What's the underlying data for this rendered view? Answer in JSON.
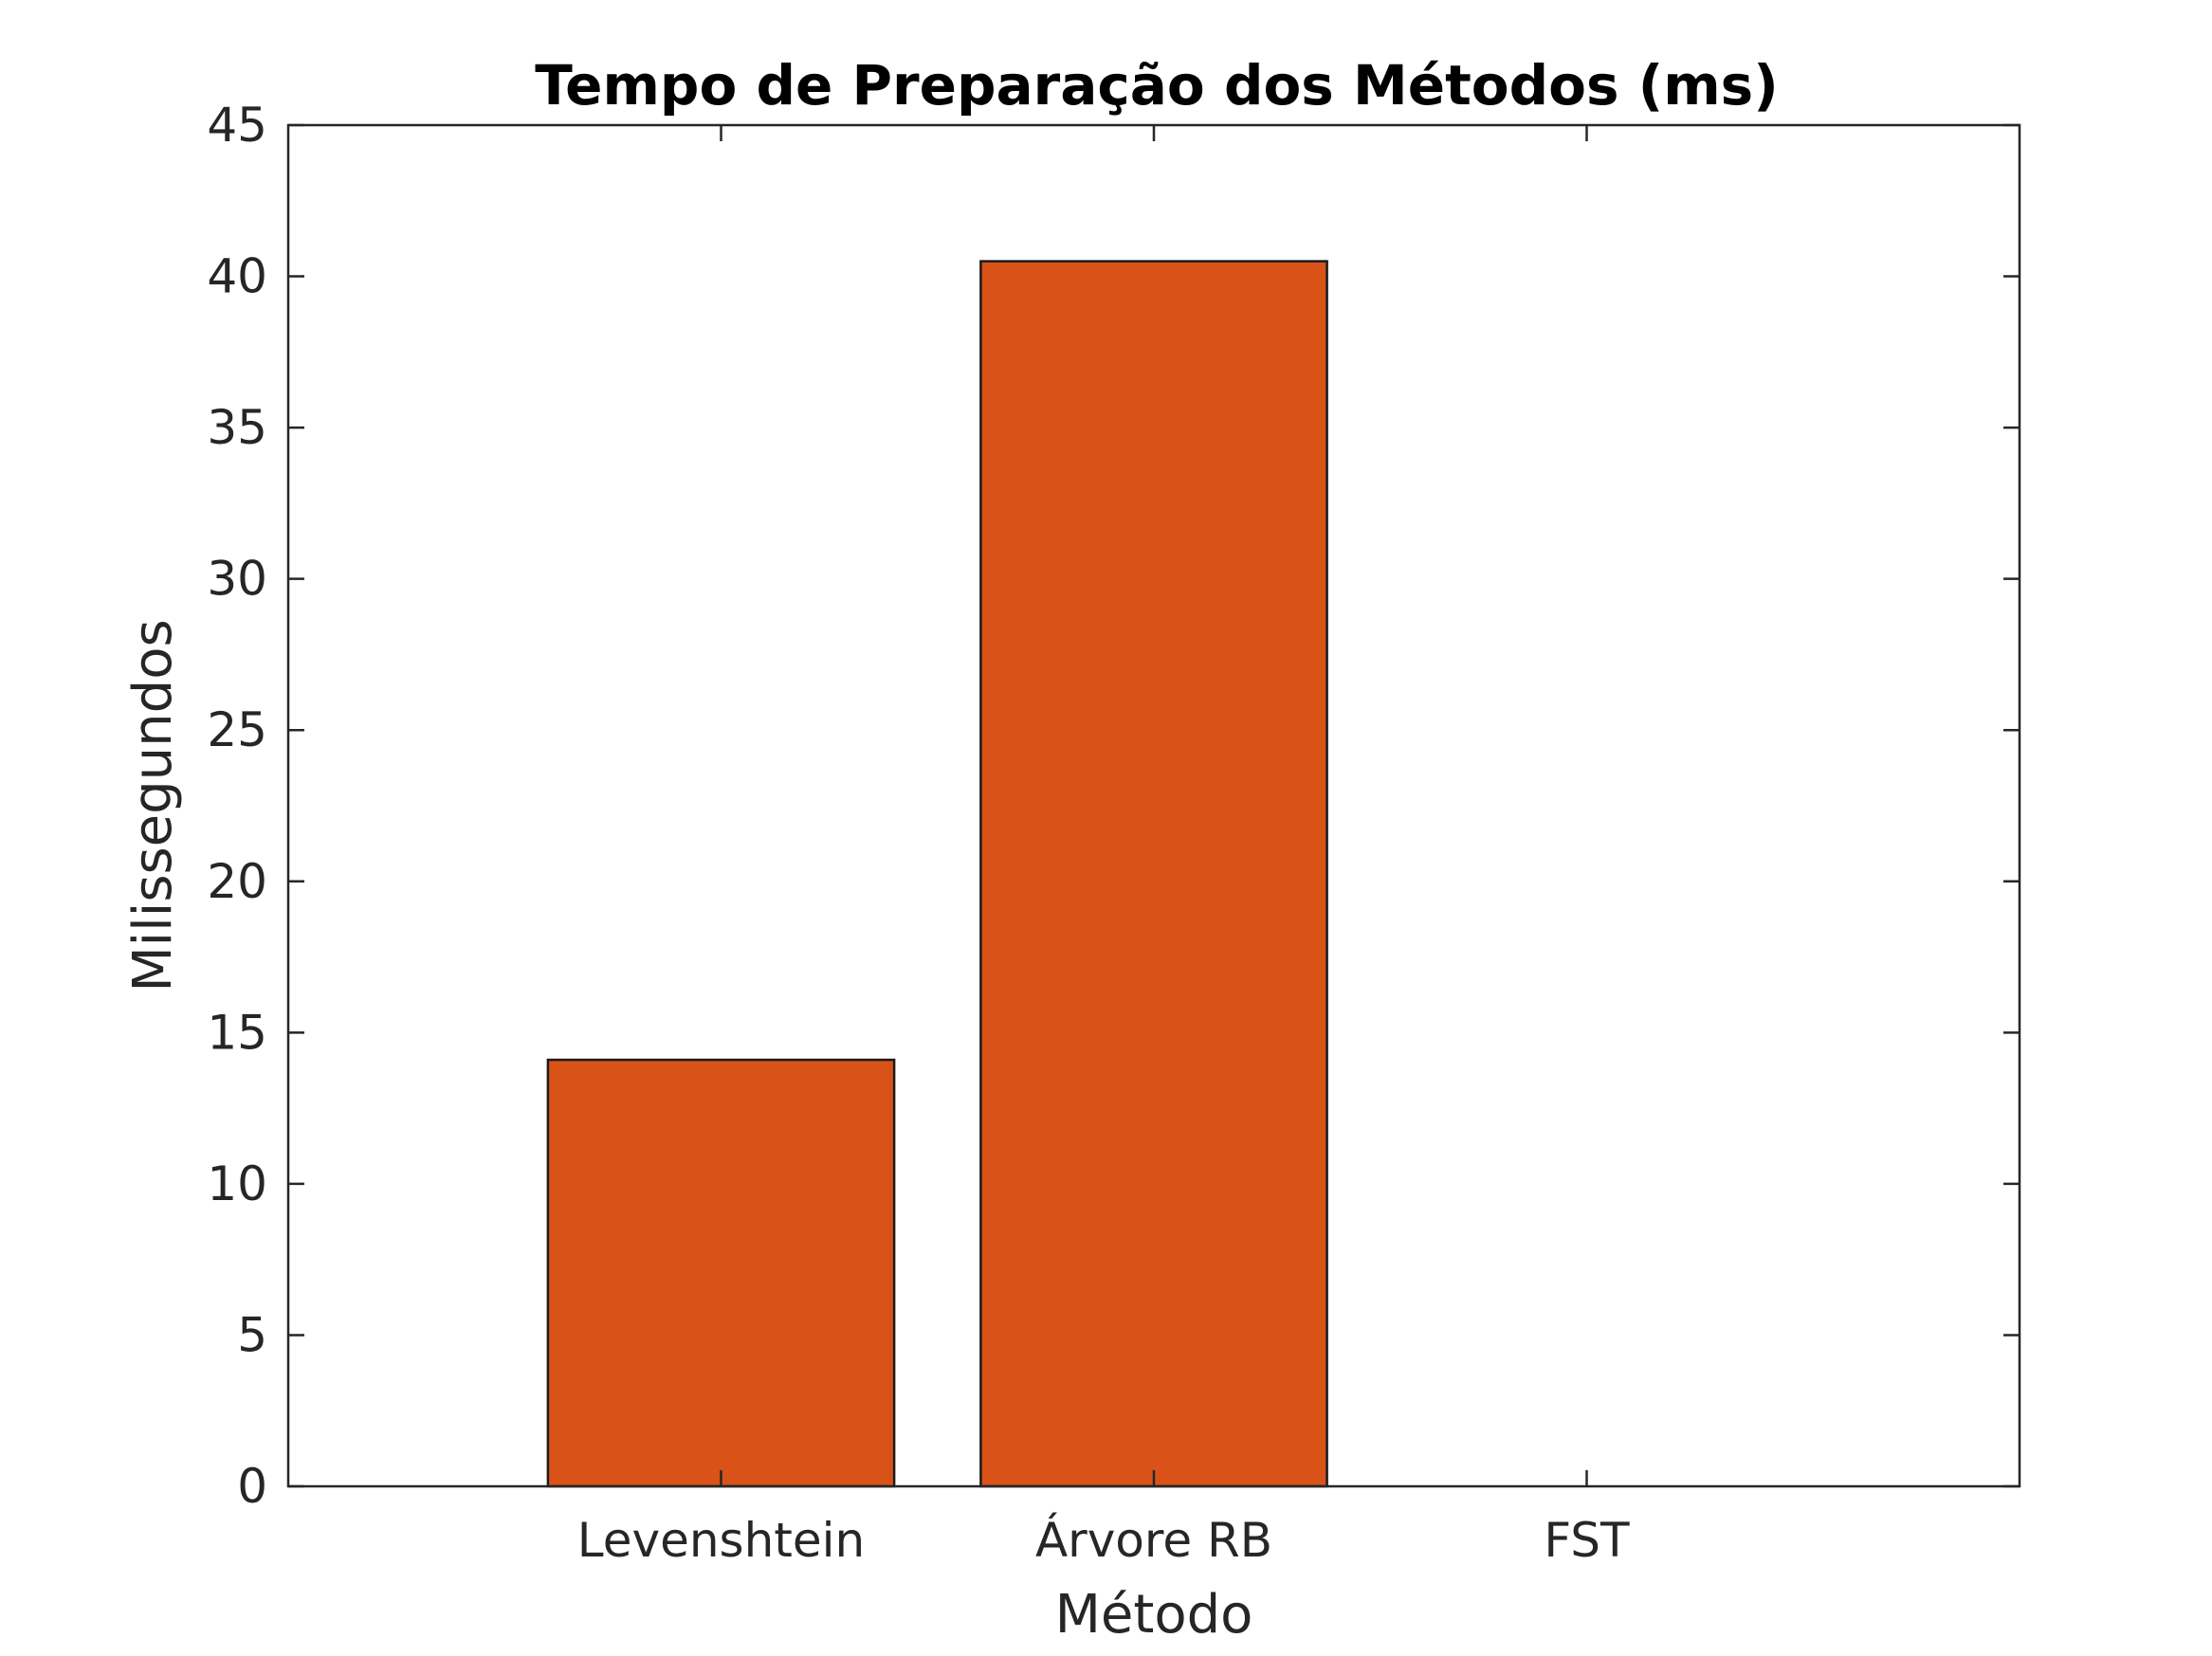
{
  "chart_data": {
    "type": "bar",
    "title": "Tempo de Preparação dos Métodos (ms)",
    "xlabel": "Método",
    "ylabel": "Milissegundos",
    "categories": [
      "Levenshtein",
      "Árvore RB",
      "FST"
    ],
    "values": [
      14.1,
      40.5,
      0
    ],
    "ylim": [
      0,
      45
    ],
    "yticks": [
      0,
      5,
      10,
      15,
      20,
      25,
      30,
      35,
      40,
      45
    ],
    "grid": false,
    "bar_color": "#D95319",
    "edge_color": "#1a1a1a",
    "axis_color": "#262626"
  }
}
